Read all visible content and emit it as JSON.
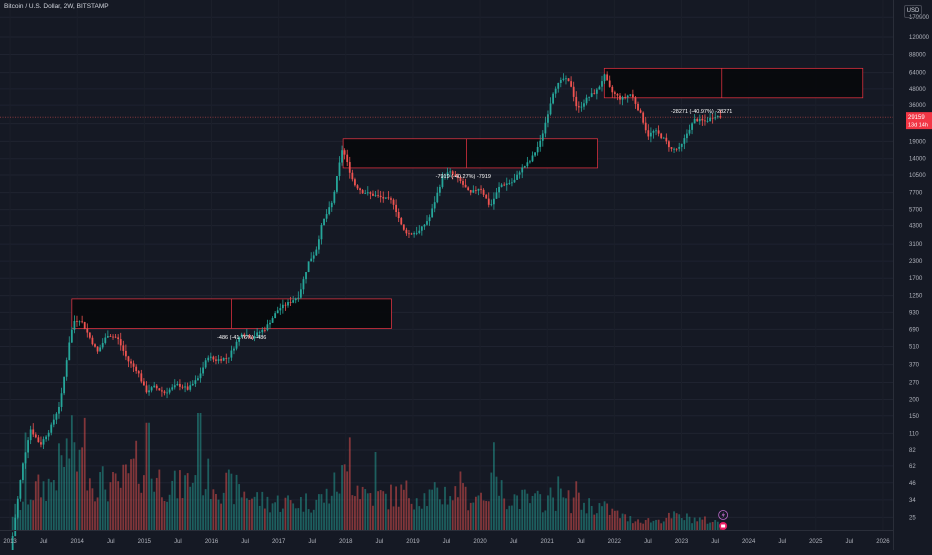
{
  "header": {
    "symbol_line": "Bitcoin / U.S. Dollar, 2W, BITSTAMP",
    "currency_button": "USD"
  },
  "colors": {
    "background": "#151924",
    "up": "#26a69a",
    "down": "#ef5350",
    "zone_border": "#f23645",
    "grid": "#1f2330",
    "price_line": "#ef5350"
  },
  "price_tags": {
    "price": "29159",
    "countdown": "13d 14h"
  },
  "events": {
    "flag_icon": "lightning-icon",
    "dividend_icon": "earnings-icon"
  },
  "chart_data": {
    "type": "candlestick",
    "title": "",
    "y_scale": "log",
    "y_ticks": [
      25,
      34,
      46,
      62,
      82,
      110,
      150,
      200,
      270,
      370,
      510,
      690,
      930,
      1250,
      1700,
      2300,
      3100,
      4300,
      5700,
      7700,
      10500,
      14000,
      19000,
      26000,
      36000,
      48000,
      64000,
      88000,
      120000,
      170000
    ],
    "x_ticks": [
      "2013",
      "Jul",
      "2014",
      "Jul",
      "2015",
      "Jul",
      "2016",
      "Jul",
      "2017",
      "Jul",
      "2018",
      "Jul",
      "2019",
      "Jul",
      "2020",
      "Jul",
      "2021",
      "Jul",
      "2022",
      "Jul",
      "2023",
      "Jul",
      "2024",
      "Jul",
      "2025",
      "Jul",
      "2026"
    ],
    "x_range": [
      2012.85,
      2026.15
    ],
    "y_range": [
      20,
      200000
    ],
    "last_price": 29159,
    "zones": [
      {
        "x0": 2013.92,
        "x1": 2018.68,
        "top": 1180,
        "bottom": 700
      },
      {
        "x0": 2017.96,
        "x1": 2021.75,
        "top": 19900,
        "bottom": 11900
      },
      {
        "x0": 2021.85,
        "x1": 2025.7,
        "top": 69000,
        "bottom": 41000
      }
    ],
    "zone_dividers": [
      2016.3,
      2019.8,
      2023.6
    ],
    "measurements": [
      {
        "label": "-486 (-41.76%) -486",
        "x": 2016.45,
        "y": 580
      },
      {
        "label": "-7919 (-40.27%) -7919",
        "x": 2019.75,
        "y": 10000
      },
      {
        "label": "-28271 (-40.97%) -28271",
        "x": 2023.3,
        "y": 31500
      }
    ],
    "price_anchors": [
      [
        2013.0,
        13
      ],
      [
        2013.18,
        60
      ],
      [
        2013.3,
        120
      ],
      [
        2013.45,
        90
      ],
      [
        2013.6,
        120
      ],
      [
        2013.75,
        190
      ],
      [
        2013.88,
        550
      ],
      [
        2013.95,
        800
      ],
      [
        2014.05,
        820
      ],
      [
        2014.15,
        650
      ],
      [
        2014.3,
        460
      ],
      [
        2014.45,
        630
      ],
      [
        2014.6,
        590
      ],
      [
        2014.75,
        400
      ],
      [
        2014.9,
        330
      ],
      [
        2015.02,
        230
      ],
      [
        2015.15,
        250
      ],
      [
        2015.3,
        225
      ],
      [
        2015.5,
        260
      ],
      [
        2015.65,
        240
      ],
      [
        2015.8,
        290
      ],
      [
        2015.95,
        430
      ],
      [
        2016.05,
        400
      ],
      [
        2016.25,
        420
      ],
      [
        2016.45,
        650
      ],
      [
        2016.6,
        600
      ],
      [
        2016.8,
        700
      ],
      [
        2017.0,
        990
      ],
      [
        2017.15,
        1100
      ],
      [
        2017.3,
        1250
      ],
      [
        2017.45,
        2300
      ],
      [
        2017.55,
        2700
      ],
      [
        2017.65,
        4500
      ],
      [
        2017.8,
        6500
      ],
      [
        2017.95,
        17000
      ],
      [
        2018.02,
        13000
      ],
      [
        2018.12,
        9000
      ],
      [
        2018.25,
        7800
      ],
      [
        2018.4,
        7400
      ],
      [
        2018.55,
        7000
      ],
      [
        2018.7,
        6600
      ],
      [
        2018.85,
        4000
      ],
      [
        2018.95,
        3700
      ],
      [
        2019.1,
        3900
      ],
      [
        2019.25,
        5000
      ],
      [
        2019.45,
        10500
      ],
      [
        2019.55,
        11000
      ],
      [
        2019.7,
        9500
      ],
      [
        2019.85,
        7500
      ],
      [
        2020.0,
        8500
      ],
      [
        2020.15,
        6000
      ],
      [
        2020.3,
        8800
      ],
      [
        2020.5,
        9300
      ],
      [
        2020.6,
        11500
      ],
      [
        2020.75,
        13500
      ],
      [
        2020.9,
        19000
      ],
      [
        2021.0,
        30000
      ],
      [
        2021.1,
        48000
      ],
      [
        2021.25,
        58000
      ],
      [
        2021.35,
        52000
      ],
      [
        2021.45,
        33000
      ],
      [
        2021.6,
        41000
      ],
      [
        2021.75,
        47000
      ],
      [
        2021.85,
        61000
      ],
      [
        2021.95,
        46000
      ],
      [
        2022.1,
        40000
      ],
      [
        2022.25,
        44000
      ],
      [
        2022.4,
        30000
      ],
      [
        2022.5,
        21000
      ],
      [
        2022.6,
        23000
      ],
      [
        2022.75,
        19500
      ],
      [
        2022.85,
        16500
      ],
      [
        2022.98,
        16800
      ],
      [
        2023.1,
        23000
      ],
      [
        2023.2,
        28000
      ],
      [
        2023.35,
        27000
      ],
      [
        2023.5,
        30000
      ],
      [
        2023.58,
        29159
      ]
    ],
    "volume_anchors": [
      [
        2013.0,
        0.15
      ],
      [
        2013.3,
        0.4
      ],
      [
        2013.6,
        0.5
      ],
      [
        2013.9,
        0.9
      ],
      [
        2014.2,
        0.55
      ],
      [
        2014.6,
        0.45
      ],
      [
        2014.9,
        0.7
      ],
      [
        2015.2,
        0.55
      ],
      [
        2015.5,
        0.45
      ],
      [
        2015.8,
        0.6
      ],
      [
        2016.1,
        0.5
      ],
      [
        2016.5,
        0.4
      ],
      [
        2016.8,
        0.3
      ],
      [
        2017.1,
        0.3
      ],
      [
        2017.4,
        0.3
      ],
      [
        2017.7,
        0.35
      ],
      [
        2018.0,
        0.6
      ],
      [
        2018.3,
        0.4
      ],
      [
        2018.6,
        0.35
      ],
      [
        2018.9,
        0.4
      ],
      [
        2019.2,
        0.35
      ],
      [
        2019.5,
        0.4
      ],
      [
        2019.9,
        0.35
      ],
      [
        2020.2,
        0.45
      ],
      [
        2020.5,
        0.35
      ],
      [
        2020.8,
        0.3
      ],
      [
        2021.1,
        0.35
      ],
      [
        2021.4,
        0.3
      ],
      [
        2021.8,
        0.25
      ],
      [
        2022.2,
        0.12
      ],
      [
        2022.6,
        0.1
      ],
      [
        2022.9,
        0.15
      ],
      [
        2023.2,
        0.12
      ],
      [
        2023.58,
        0.08
      ]
    ],
    "volume_spikes": [
      [
        2013.22,
        1.0
      ],
      [
        2013.95,
        0.9
      ],
      [
        2014.12,
        1.15
      ],
      [
        2015.05,
        1.1
      ],
      [
        2015.82,
        1.6
      ],
      [
        2018.05,
        0.95
      ],
      [
        2018.45,
        0.8
      ],
      [
        2019.7,
        0.6
      ],
      [
        2020.22,
        0.9
      ],
      [
        2021.15,
        0.55
      ],
      [
        2021.42,
        0.5
      ]
    ]
  }
}
